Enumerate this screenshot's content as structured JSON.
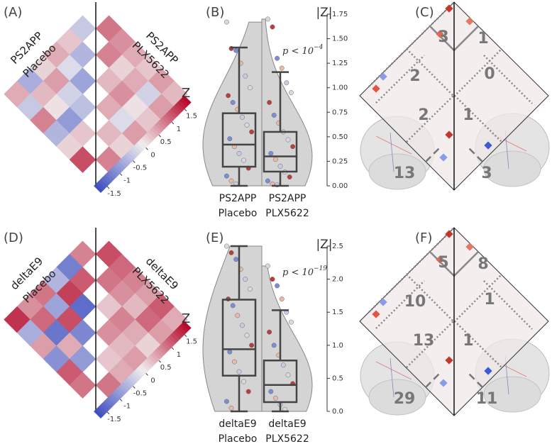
{
  "cmap": [
    "#3b4cc0",
    "#f0eeee",
    "#b40426"
  ],
  "point_colors": [
    "#d9d9e6",
    "#b8403c",
    "#7c8cd6",
    "#e9b9a9",
    "#c9cbe4"
  ],
  "panels": [
    {
      "label": "(A)",
      "placebo_label": [
        "PS2APP",
        "Placebo"
      ],
      "treated_label": [
        "PS2APP",
        "PLX5622"
      ],
      "colorbar": {
        "title": "Z",
        "lim": [
          -1.75,
          1.75
        ],
        "ticks": [
          -1.5,
          -1.0,
          -0.5,
          0.0,
          0.5,
          1.0,
          1.5
        ]
      },
      "placebo_values": [
        -0.4,
        0.3,
        -0.6,
        0.5,
        -0.2,
        -0.8,
        0.2,
        0.6,
        -0.3,
        -0.5,
        -0.7,
        0.4,
        0.1,
        -0.9,
        0.3,
        0.5,
        -0.4,
        0.8,
        -0.6,
        0.2,
        1.2
      ],
      "treated_values": [
        0.9,
        0.7,
        0.5,
        0.3,
        0.6,
        0.4,
        0.8,
        0.2,
        0.5,
        -0.3,
        0.6,
        0.4,
        0.7,
        0.1,
        0.3,
        0.5,
        -0.2,
        0.6,
        0.4,
        0.2,
        0.8
      ]
    },
    {
      "label": "(B)",
      "axis_title": "|Z|",
      "ylim": [
        0,
        1.75
      ],
      "yticks": [
        {
          "value": 0,
          "label": "0.00"
        },
        {
          "value": 0.25,
          "label": "0.25"
        },
        {
          "value": 0.5,
          "label": "0.50"
        },
        {
          "value": 0.75,
          "label": "0.75"
        },
        {
          "value": 1,
          "label": "1.00"
        },
        {
          "value": 1.25,
          "label": "1.25"
        },
        {
          "value": 1.5,
          "label": "1.50"
        },
        {
          "value": 1.75,
          "label": "1.75"
        }
      ],
      "p_value": {
        "text": "p < 10",
        "exponent": "−4"
      },
      "groups": [
        {
          "name": [
            "PS2APP",
            "Placebo"
          ],
          "whisker_low": 0,
          "q1": 0.195,
          "median": 0.42,
          "q3": 0.74,
          "whisker_high": 1.41,
          "points": [
            1.67,
            1.4,
            1.38,
            1.25,
            1.12,
            1.0,
            0.92,
            0.85,
            0.78,
            0.7,
            0.62,
            0.55,
            0.48,
            0.4,
            0.33,
            0.26,
            0.18,
            0.1,
            0.05,
            0.02
          ]
        },
        {
          "name": [
            "PS2APP",
            "PLX5622"
          ],
          "whisker_low": 0,
          "q1": 0.145,
          "median": 0.3,
          "q3": 0.55,
          "whisker_high": 1.16,
          "points": [
            1.7,
            1.62,
            1.3,
            1.2,
            1.05,
            0.95,
            0.85,
            0.72,
            0.64,
            0.55,
            0.47,
            0.4,
            0.33,
            0.27,
            0.2,
            0.14,
            0.09,
            0.05,
            0.02,
            0.01
          ]
        }
      ]
    },
    {
      "label": "(C)",
      "regions": [
        3,
        1,
        2,
        0,
        2,
        1,
        13,
        3
      ]
    },
    {
      "label": "(D)",
      "placebo_label": [
        "deltaE9",
        "Placebo"
      ],
      "treated_label": [
        "deltaE9",
        "PLX5622"
      ],
      "colorbar": {
        "title": "Z",
        "lim": [
          -1.75,
          1.75
        ],
        "ticks": [
          -1.5,
          -1.0,
          -0.5,
          0.0,
          0.5,
          1.0,
          1.5
        ]
      },
      "placebo_values": [
        0.8,
        -1.2,
        1.1,
        -0.6,
        1.3,
        -1.4,
        0.9,
        -0.8,
        1.2,
        -1.1,
        0.7,
        1.0,
        -1.3,
        0.5,
        -0.9,
        1.4,
        -0.7,
        0.6,
        -1.0,
        1.1,
        0.9
      ],
      "treated_values": [
        1.2,
        1.0,
        0.8,
        0.6,
        1.1,
        0.5,
        0.9,
        0.7,
        0.4,
        1.0,
        0.6,
        0.3,
        0.8,
        0.5,
        0.2,
        0.7,
        0.4,
        0.6,
        0.3,
        0.5,
        0.9
      ]
    },
    {
      "label": "(E)",
      "axis_title": "|Z|",
      "ylim": [
        0,
        2.5
      ],
      "yticks": [
        {
          "value": 0,
          "label": "0.0"
        },
        0.5,
        {
          "value": 1,
          "label": "1.0"
        },
        1.5,
        {
          "value": 2,
          "label": "2.0"
        },
        2.5
      ],
      "p_value": {
        "text": "p < 10",
        "exponent": "−19"
      },
      "groups": [
        {
          "name": [
            "deltaE9",
            "Placebo"
          ],
          "whisker_low": 0,
          "q1": 0.54,
          "median": 0.94,
          "q3": 1.69,
          "whisker_high": 2.5,
          "points": [
            2.5,
            2.4,
            2.3,
            2.15,
            2.0,
            1.85,
            1.7,
            1.6,
            1.45,
            1.3,
            1.15,
            1.0,
            0.9,
            0.75,
            0.6,
            0.45,
            0.3,
            0.15,
            0.05
          ]
        },
        {
          "name": [
            "deltaE9",
            "PLX5622"
          ],
          "whisker_low": 0,
          "q1": 0.14,
          "median": 0.4,
          "q3": 0.77,
          "whisker_high": 1.53,
          "points": [
            2.2,
            2.0,
            1.9,
            1.7,
            1.5,
            1.35,
            1.2,
            1.0,
            0.85,
            0.7,
            0.55,
            0.42,
            0.3,
            0.2,
            0.1,
            0.03
          ]
        }
      ]
    },
    {
      "label": "(F)",
      "regions": [
        5,
        8,
        10,
        1,
        13,
        1,
        29,
        11
      ]
    }
  ]
}
